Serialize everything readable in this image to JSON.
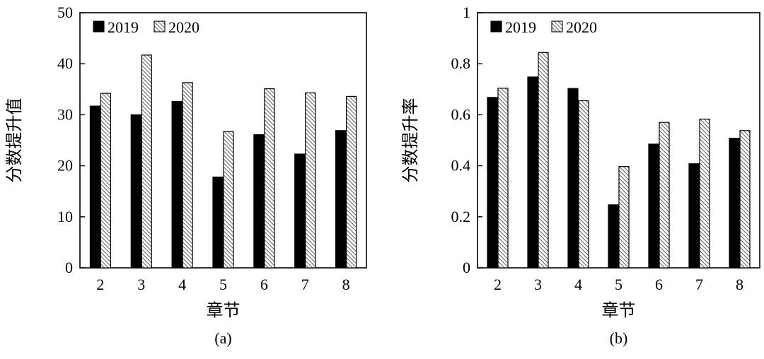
{
  "chart_data": [
    {
      "type": "bar",
      "panel_label": "(a)",
      "xlabel": "章节",
      "ylabel": "分数提升值",
      "categories": [
        "2",
        "3",
        "4",
        "5",
        "6",
        "7",
        "8"
      ],
      "ylim": [
        0,
        50
      ],
      "yticks": [
        "0",
        "10",
        "20",
        "30",
        "40",
        "50"
      ],
      "legend_position": "top-left",
      "series": [
        {
          "name": "2019",
          "style": "solid",
          "values": [
            31.7,
            30.0,
            32.6,
            17.8,
            26.1,
            22.3,
            26.9
          ]
        },
        {
          "name": "2020",
          "style": "hatched",
          "values": [
            34.2,
            41.7,
            36.3,
            26.7,
            35.1,
            34.3,
            33.6
          ]
        }
      ]
    },
    {
      "type": "bar",
      "panel_label": "(b)",
      "xlabel": "章节",
      "ylabel": "分数提升率",
      "categories": [
        "2",
        "3",
        "4",
        "5",
        "6",
        "7",
        "8"
      ],
      "ylim": [
        0,
        1
      ],
      "yticks": [
        "0",
        "0.2",
        "0.4",
        "0.6",
        "0.8",
        "1"
      ],
      "legend_position": "top-left",
      "series": [
        {
          "name": "2019",
          "style": "solid",
          "values": [
            0.668,
            0.748,
            0.703,
            0.247,
            0.485,
            0.408,
            0.508
          ]
        },
        {
          "name": "2020",
          "style": "hatched",
          "values": [
            0.704,
            0.844,
            0.655,
            0.397,
            0.57,
            0.583,
            0.538
          ]
        }
      ]
    }
  ],
  "colors": {
    "solid_bar": "#000000",
    "hatch_line": "#333333",
    "hatch_bg": "#ffffff"
  }
}
